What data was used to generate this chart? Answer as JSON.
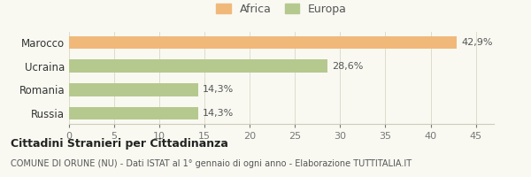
{
  "categories": [
    "Russia",
    "Romania",
    "Ucraina",
    "Marocco"
  ],
  "values": [
    14.3,
    14.3,
    28.6,
    42.9
  ],
  "bar_colors": [
    "#b5c98e",
    "#b5c98e",
    "#b5c98e",
    "#f0b97a"
  ],
  "bar_labels": [
    "14,3%",
    "14,3%",
    "28,6%",
    "42,9%"
  ],
  "legend_labels": [
    "Africa",
    "Europa"
  ],
  "legend_colors": [
    "#f0b97a",
    "#b5c98e"
  ],
  "xlim": [
    0,
    47
  ],
  "xticks": [
    0,
    5,
    10,
    15,
    20,
    25,
    30,
    35,
    40,
    45
  ],
  "title_bold": "Cittadini Stranieri per Cittadinanza",
  "subtitle": "COMUNE DI ORUNE (NU) - Dati ISTAT al 1° gennaio di ogni anno - Elaborazione TUTTITALIA.IT",
  "background_color": "#f9f9f2",
  "bar_height": 0.55,
  "label_fontsize": 8.0,
  "tick_fontsize": 8.0,
  "ytick_fontsize": 8.5
}
